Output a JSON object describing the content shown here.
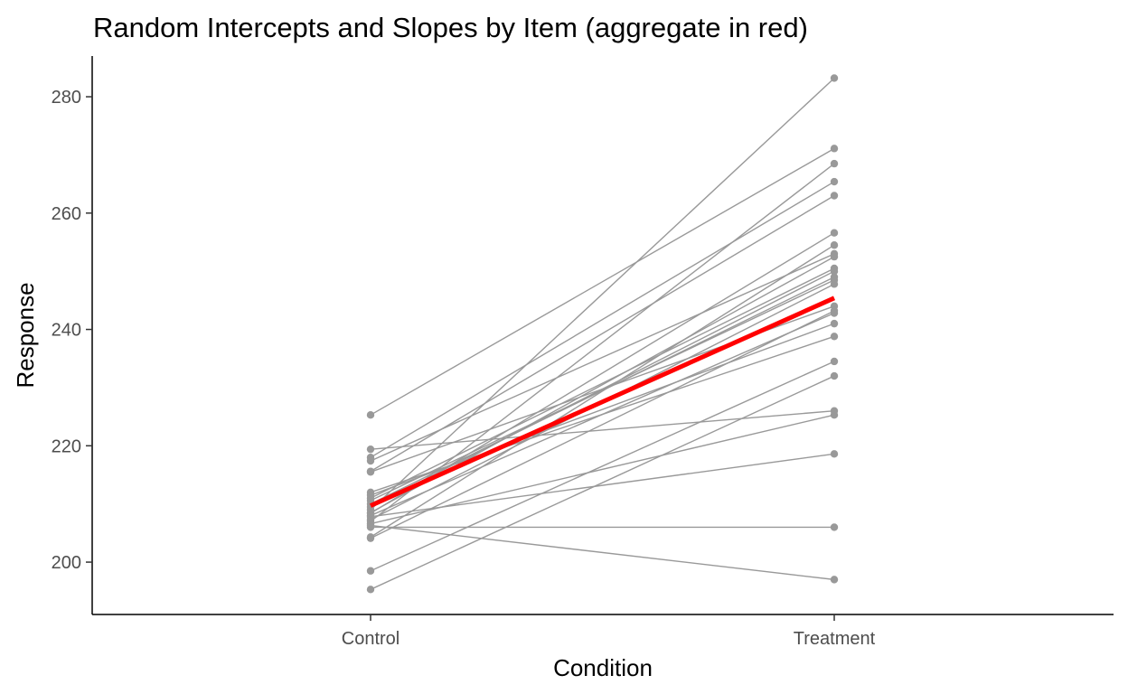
{
  "chart_data": {
    "type": "line",
    "title": "Random Intercepts and Slopes by Item (aggregate in red)",
    "xlabel": "Condition",
    "ylabel": "Response",
    "categories": [
      "Control",
      "Treatment"
    ],
    "ylim": [
      191,
      287
    ],
    "yticks": [
      200,
      220,
      240,
      260,
      280
    ],
    "grid": false,
    "legend": "none",
    "item_color": "#999999",
    "aggregate_color": "#ff0000",
    "series": [
      {
        "values": [
          225.3,
          271.1
        ]
      },
      {
        "values": [
          219.4,
          226.0
        ]
      },
      {
        "values": [
          218.0,
          265.4
        ]
      },
      {
        "values": [
          217.4,
          253.0
        ]
      },
      {
        "values": [
          215.6,
          263.0
        ]
      },
      {
        "values": [
          215.5,
          244.0
        ]
      },
      {
        "values": [
          212.0,
          238.8
        ]
      },
      {
        "values": [
          211.0,
          250.5
        ]
      },
      {
        "values": [
          210.6,
          248.5
        ]
      },
      {
        "values": [
          210.0,
          249.0
        ]
      },
      {
        "values": [
          209.0,
          283.2
        ]
      },
      {
        "values": [
          208.5,
          252.5
        ]
      },
      {
        "values": [
          208.4,
          256.6
        ]
      },
      {
        "values": [
          208.0,
          242.8
        ]
      },
      {
        "values": [
          207.8,
          218.6
        ]
      },
      {
        "values": [
          207.3,
          247.8
        ]
      },
      {
        "values": [
          207.0,
          268.5
        ]
      },
      {
        "values": [
          206.6,
          225.3
        ]
      },
      {
        "values": [
          206.3,
          197.0
        ]
      },
      {
        "values": [
          206.0,
          206.0
        ]
      },
      {
        "values": [
          204.3,
          254.5
        ]
      },
      {
        "values": [
          204.1,
          243.2
        ]
      },
      {
        "values": [
          198.5,
          234.5
        ]
      },
      {
        "values": [
          195.3,
          232.0
        ]
      },
      {
        "values": [
          211.5,
          241.0
        ]
      },
      {
        "values": [
          209.5,
          250.0
        ]
      }
    ],
    "aggregate": {
      "values": [
        209.7,
        245.4
      ]
    }
  }
}
